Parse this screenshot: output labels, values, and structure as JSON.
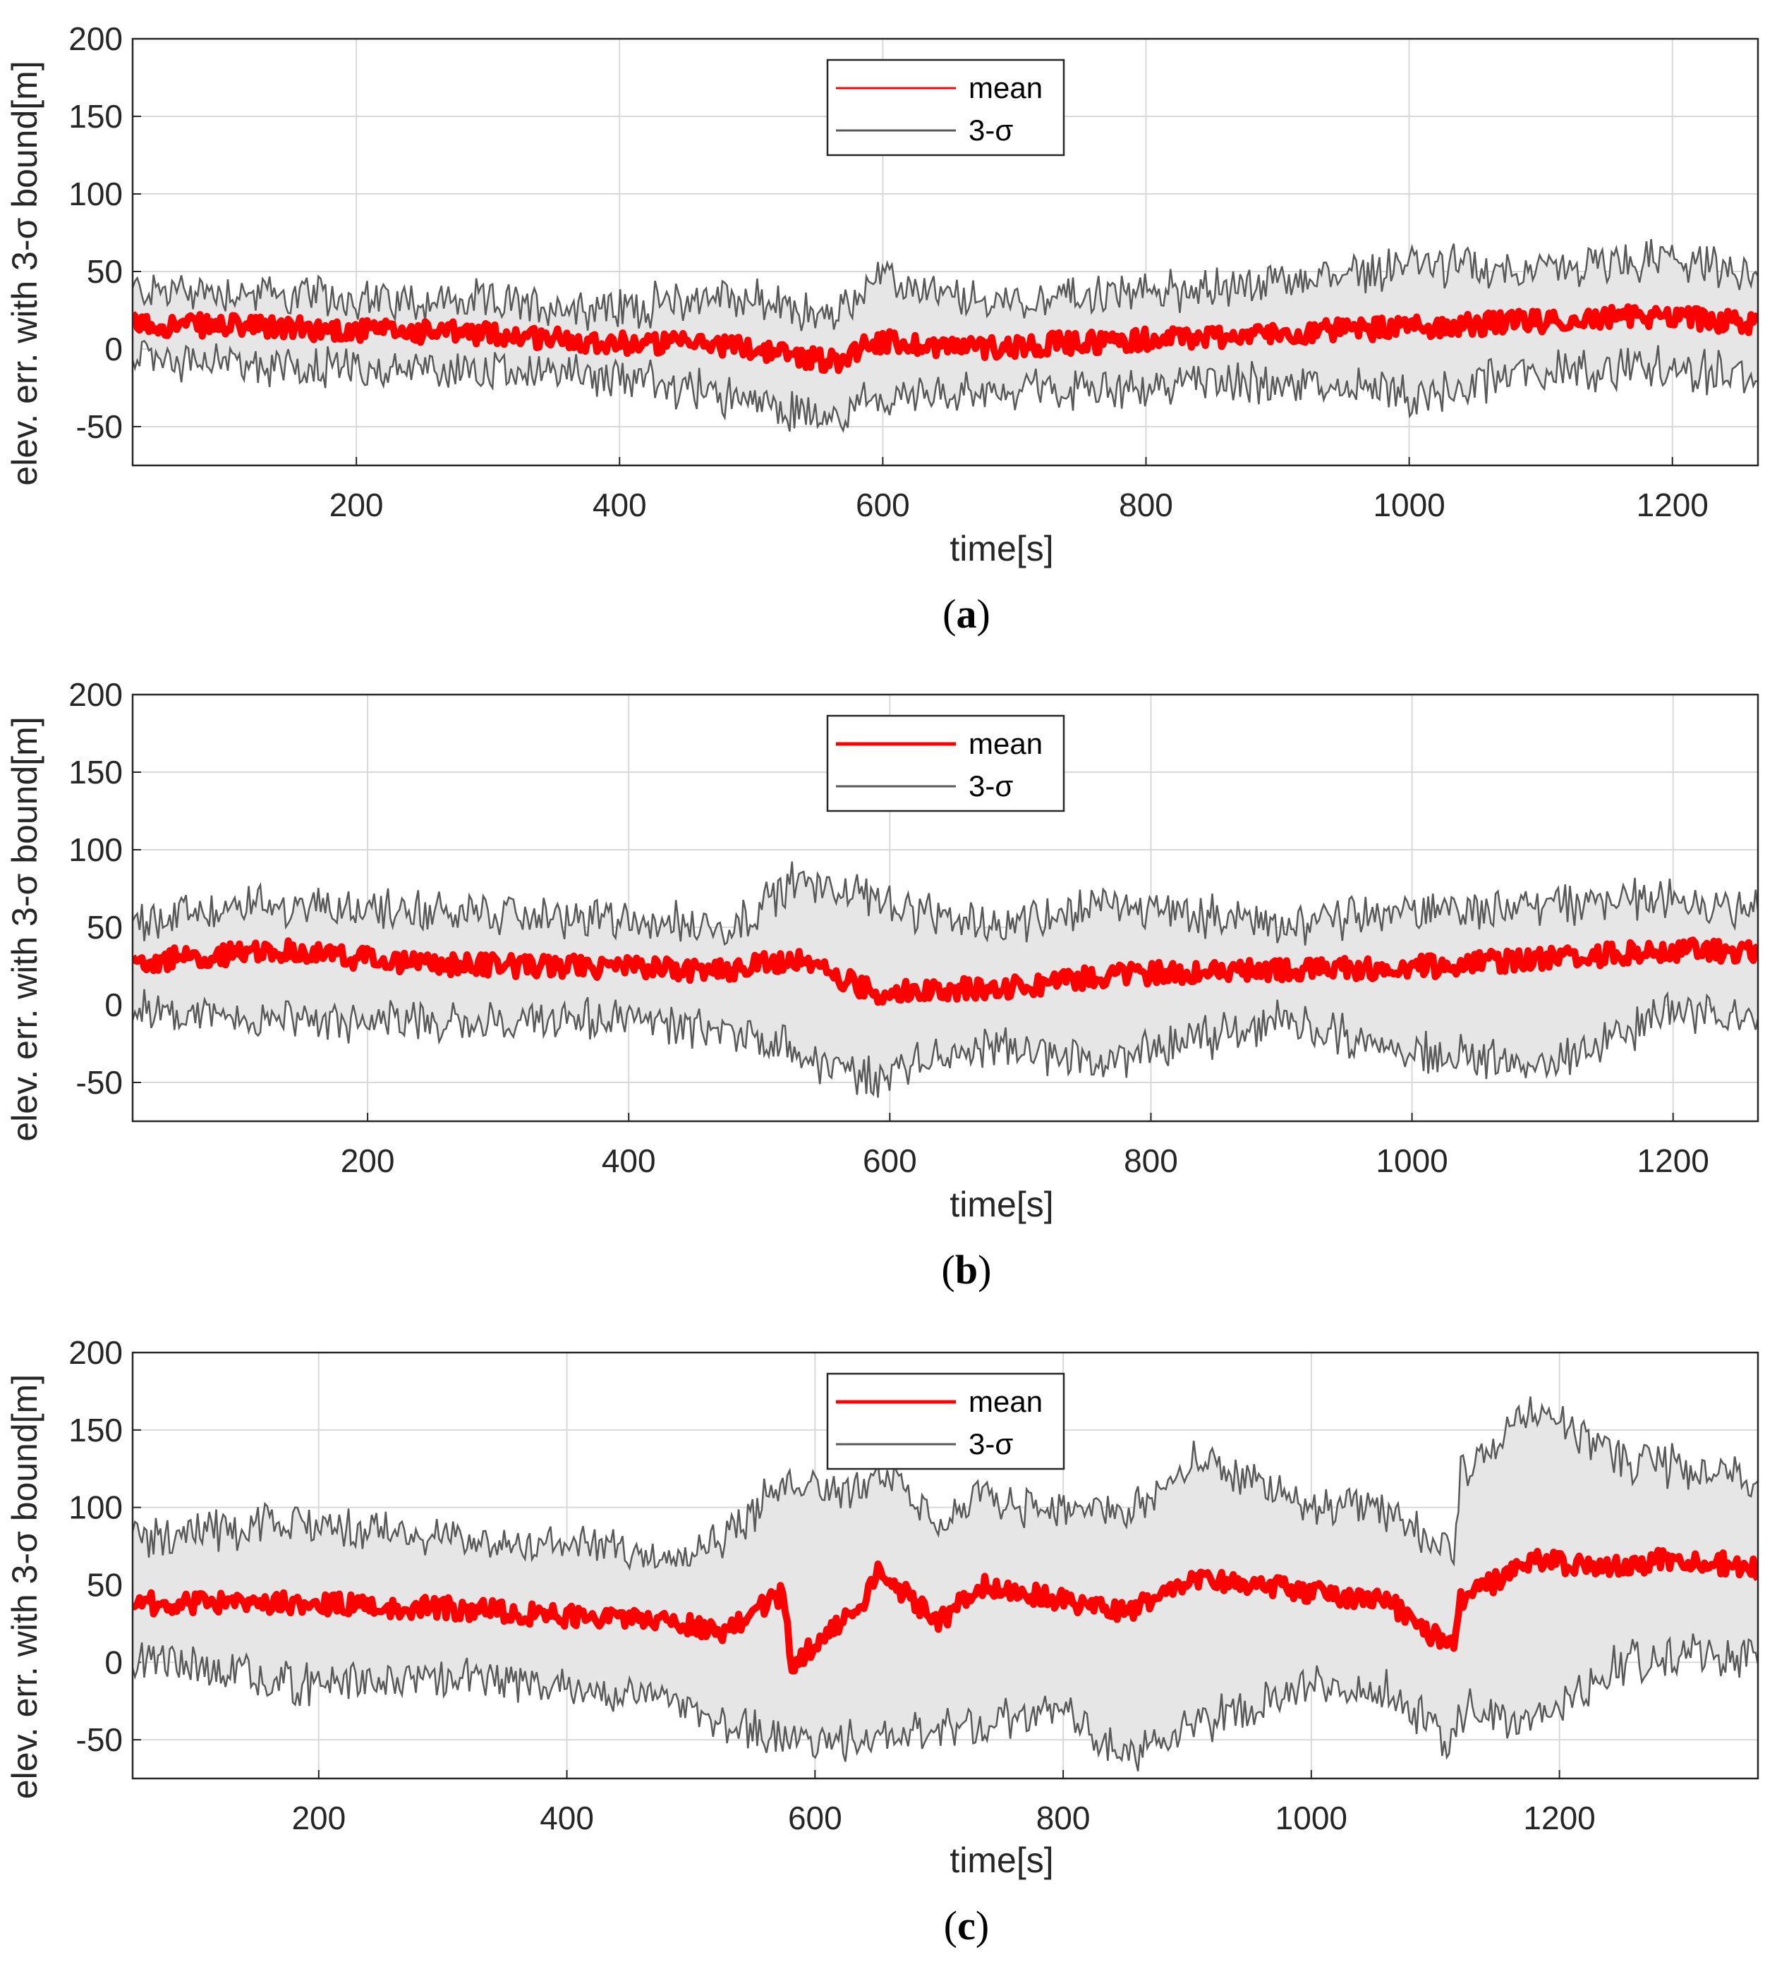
{
  "chart_data": [
    {
      "type": "line",
      "panel_label": "a",
      "xlabel": "time[s]",
      "ylabel": "elev. err. with 3-σ bound[m]",
      "xlim": [
        30,
        1265
      ],
      "ylim": [
        -75,
        200
      ],
      "xticks": [
        200,
        400,
        600,
        800,
        1000,
        1200
      ],
      "yticks": [
        -50,
        0,
        50,
        100,
        150,
        200
      ],
      "grid": true,
      "legend": {
        "position": "top-center",
        "entries": [
          "mean",
          "3-σ"
        ]
      },
      "series": [
        {
          "name": "mean",
          "color": "#ff0000",
          "x": [
            30,
            100,
            200,
            300,
            400,
            480,
            565,
            590,
            670,
            770,
            900,
            1000,
            1100,
            1200,
            1265
          ],
          "values": [
            16,
            15,
            12,
            10,
            4,
            3,
            -8,
            5,
            1,
            5,
            10,
            14,
            18,
            22,
            15
          ]
        },
        {
          "name": "3-σ upper",
          "color": "#595959",
          "x": [
            30,
            100,
            200,
            300,
            400,
            480,
            565,
            590,
            670,
            770,
            900,
            1000,
            1100,
            1200,
            1265
          ],
          "values": [
            38,
            37,
            32,
            30,
            26,
            35,
            20,
            45,
            30,
            35,
            42,
            55,
            50,
            58,
            45
          ]
        },
        {
          "name": "3-σ lower",
          "color": "#595959",
          "x": [
            30,
            100,
            200,
            300,
            400,
            480,
            565,
            590,
            670,
            770,
            900,
            1000,
            1100,
            1200,
            1265
          ],
          "values": [
            -5,
            -10,
            -12,
            -14,
            -18,
            -30,
            -45,
            -30,
            -28,
            -25,
            -20,
            -30,
            -15,
            -12,
            -20
          ]
        }
      ]
    },
    {
      "type": "line",
      "panel_label": "b",
      "xlabel": "time[s]",
      "ylabel": "elev. err. with 3-σ bound[m]",
      "xlim": [
        20,
        1265
      ],
      "ylim": [
        -75,
        200
      ],
      "xticks": [
        200,
        400,
        600,
        800,
        1000,
        1200
      ],
      "yticks": [
        -50,
        0,
        50,
        100,
        150,
        200
      ],
      "grid": true,
      "legend": {
        "position": "top-center",
        "entries": [
          "mean",
          "3-σ"
        ]
      },
      "series": [
        {
          "name": "mean",
          "color": "#ff0000",
          "x": [
            20,
            130,
            250,
            400,
            480,
            525,
            590,
            650,
            700,
            775,
            900,
            1000,
            1100,
            1200,
            1265
          ],
          "values": [
            28,
            35,
            26,
            24,
            22,
            30,
            8,
            10,
            12,
            20,
            22,
            24,
            30,
            35,
            34
          ]
        },
        {
          "name": "3-σ upper",
          "color": "#595959",
          "x": [
            20,
            130,
            250,
            400,
            480,
            525,
            590,
            650,
            700,
            775,
            900,
            1000,
            1100,
            1200,
            1265
          ],
          "values": [
            55,
            65,
            60,
            55,
            50,
            80,
            70,
            50,
            55,
            65,
            52,
            60,
            65,
            70,
            62
          ]
        },
        {
          "name": "3-σ lower",
          "color": "#595959",
          "x": [
            20,
            130,
            250,
            400,
            480,
            525,
            590,
            650,
            700,
            775,
            900,
            1000,
            1100,
            1200,
            1265
          ],
          "values": [
            -5,
            -10,
            -12,
            -8,
            -18,
            -30,
            -50,
            -25,
            -30,
            -35,
            -10,
            -30,
            -40,
            -5,
            -10
          ]
        }
      ]
    },
    {
      "type": "line",
      "panel_label": "c",
      "xlabel": "time[s]",
      "ylabel": "elev. err. with 3-σ bound[m]",
      "xlim": [
        50,
        1360
      ],
      "ylim": [
        -75,
        200
      ],
      "xticks": [
        200,
        400,
        600,
        800,
        1000,
        1200
      ],
      "yticks": [
        -50,
        0,
        50,
        100,
        150,
        200
      ],
      "grid": true,
      "legend": {
        "position": "top-center",
        "entries": [
          "mean",
          "3-σ"
        ]
      },
      "series": [
        {
          "name": "mean",
          "color": "#ff0000",
          "x": [
            50,
            200,
            300,
            400,
            480,
            525,
            575,
            580,
            640,
            650,
            700,
            730,
            800,
            850,
            910,
            1000,
            1060,
            1115,
            1120,
            1180,
            1250,
            1300,
            1360
          ],
          "values": [
            38,
            38,
            35,
            30,
            28,
            20,
            45,
            -2,
            40,
            60,
            25,
            50,
            40,
            32,
            55,
            45,
            40,
            8,
            40,
            65,
            62,
            68,
            60
          ]
        },
        {
          "name": "3-σ upper",
          "color": "#595959",
          "x": [
            50,
            200,
            300,
            400,
            480,
            525,
            575,
            580,
            640,
            650,
            700,
            730,
            800,
            850,
            910,
            1000,
            1060,
            1115,
            1120,
            1180,
            1250,
            1300,
            1360
          ],
          "values": [
            80,
            90,
            80,
            75,
            70,
            80,
            115,
            120,
            110,
            125,
            90,
            105,
            100,
            95,
            130,
            100,
            98,
            75,
            120,
            165,
            130,
            125,
            120
          ]
        },
        {
          "name": "3-σ lower",
          "color": "#595959",
          "x": [
            50,
            200,
            300,
            400,
            480,
            525,
            575,
            580,
            640,
            650,
            700,
            730,
            800,
            850,
            910,
            1000,
            1060,
            1115,
            1120,
            1180,
            1250,
            1300,
            1360
          ],
          "values": [
            5,
            -15,
            -10,
            -15,
            -25,
            -40,
            -50,
            -55,
            -50,
            -45,
            -45,
            -40,
            -30,
            -60,
            -40,
            -15,
            -18,
            -55,
            -30,
            -40,
            0,
            5,
            0
          ]
        }
      ]
    }
  ]
}
